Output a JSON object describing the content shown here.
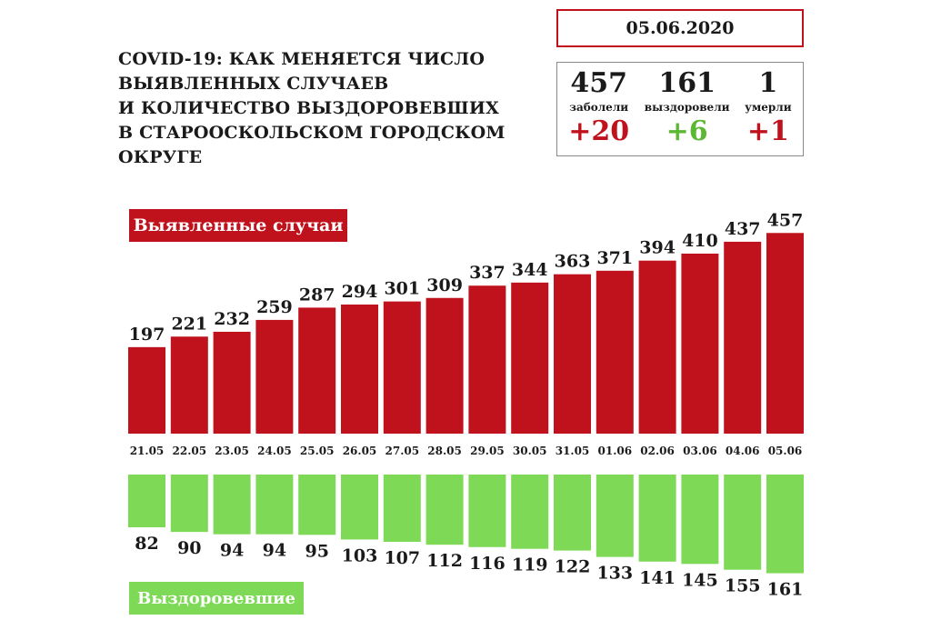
{
  "title_lines": [
    "COVID-19: КАК МЕНЯЕТСЯ ЧИСЛО",
    "ВЫЯВЛЕННЫХ СЛУЧАЕВ",
    "И КОЛИЧЕСТВО ВЫЗДОРОВЕВШИХ",
    "В СТАРООСКОЛЬСКОМ ГОРОДСКОМ",
    "ОКРУГЕ"
  ],
  "date": "05.06.2020",
  "stats": [
    {
      "value": "457",
      "label": "заболели",
      "delta": "+20",
      "delta_color": "#c0121c"
    },
    {
      "value": "161",
      "label": "выздоровели",
      "delta": "+6",
      "delta_color": "#5cb832"
    },
    {
      "value": "1",
      "label": "умерли",
      "delta": "+1",
      "delta_color": "#c0121c"
    }
  ],
  "colors": {
    "cases": "#c0121c",
    "recovered": "#7ed957"
  },
  "chart_data": {
    "type": "bar",
    "categories": [
      "21.05",
      "22.05",
      "23.05",
      "24.05",
      "25.05",
      "26.05",
      "27.05",
      "28.05",
      "29.05",
      "30.05",
      "31.05",
      "01.06",
      "02.06",
      "03.06",
      "04.06",
      "05.06"
    ],
    "series": [
      {
        "name": "Выявленные случаи",
        "values": [
          197,
          221,
          232,
          259,
          287,
          294,
          301,
          309,
          337,
          344,
          363,
          371,
          394,
          410,
          437,
          457
        ],
        "direction": "up"
      },
      {
        "name": "Выздоровевшие",
        "values": [
          82,
          90,
          94,
          94,
          95,
          103,
          107,
          112,
          116,
          119,
          122,
          133,
          141,
          145,
          155,
          161
        ],
        "direction": "down"
      }
    ],
    "grid": false
  }
}
